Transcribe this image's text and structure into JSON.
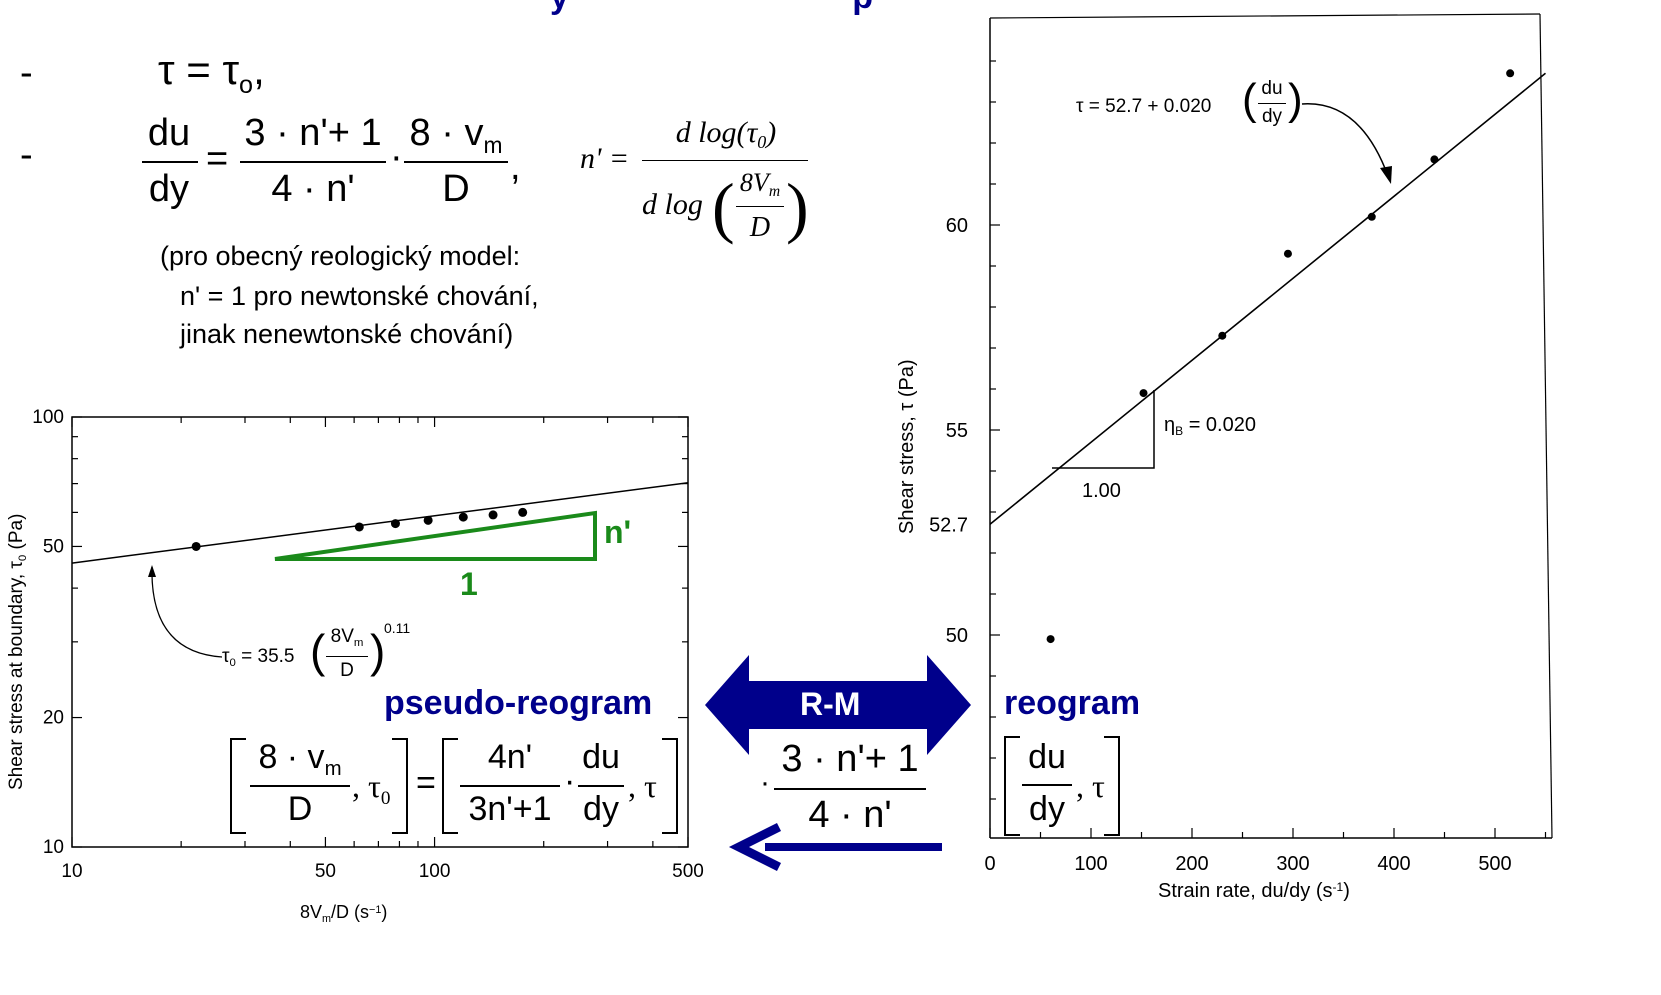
{
  "top_clipped_text": "y                              p",
  "equations": {
    "dash1": "-",
    "tau_eq": "τ = τ",
    "tau_sub": "o",
    "tau_comma": ",",
    "dash2": "-",
    "dudy_num": "du",
    "dudy_den": "dy",
    "eq_sign": "=",
    "frac1_num": "3 · n'+ 1",
    "frac1_den": "4 · n'",
    "dot": "·",
    "frac2_num_a": "8 · v",
    "frac2_num_sub": "m",
    "frac2_den": "D",
    "comma": ",",
    "nprime_lhs": "n' =",
    "nprime_num": "d log(τ",
    "nprime_num_sub": "0",
    "nprime_num_close": ")",
    "nprime_den_a": "d log",
    "nprime_den_num": "8V",
    "nprime_den_num_sub": "m",
    "nprime_den_den": "D"
  },
  "notes": [
    "(pro obecný reologický model:",
    "n' = 1 pro newtonské chování,",
    "jinak nenewtonské chování)"
  ],
  "colors": {
    "green": "#1a8a1a",
    "navy": "#00008b",
    "arrow_fill": "#00008b"
  },
  "left_plot": {
    "ylabel": "Shear stress at boundary, τ",
    "ylabel_sub": "0",
    "ylabel_unit": " (Pa)",
    "xlabel": "8V",
    "xlabel_sub": "m",
    "xlabel_rest": "/D (s",
    "xlabel_sup": "−1",
    "xlabel_end": ")",
    "fit_label_a": "τ",
    "fit_label_sub": "0",
    "fit_label_b": " = 35.5",
    "fit_frac_num": "8V",
    "fit_frac_num_sub": "m",
    "fit_frac_den": "D",
    "fit_exp": "0.11",
    "triangle_vertical_label": "n'",
    "triangle_horizontal_label": "1",
    "title": "pseudo-reogram",
    "formula_left_num": "8 · v",
    "formula_left_num_sub": "m",
    "formula_left_den": "D",
    "formula_left_tail": ", τ",
    "formula_left_tail_sub": "0",
    "formula_eq": "=",
    "formula_right_num1": "4n'",
    "formula_right_den1": "3n'+1",
    "formula_right_dot": "·",
    "formula_right_num2": "du",
    "formula_right_den2": "dy",
    "formula_right_tail": ", τ"
  },
  "right_plot": {
    "ylabel": "Shear stress, τ (Pa)",
    "xlabel": "Strain rate, du/dy (s",
    "xlabel_sup": "-1",
    "xlabel_end": ")",
    "fit_label_a": "τ = 52.7 + 0.020",
    "fit_frac_num": "du",
    "fit_frac_den": "dy",
    "slope_label_a": "η",
    "slope_label_sub": "B",
    "slope_label_b": " = 0.020",
    "run_label": "1.00",
    "title": "reogram",
    "formula_num": "du",
    "formula_den": "dy",
    "formula_tail": ", τ"
  },
  "middle": {
    "arrow_label": "R-M",
    "dot": "·",
    "frac_num": "3 · n'+ 1",
    "frac_den": "4 · n'"
  },
  "chart_data": [
    {
      "type": "scatter",
      "xscale": "log",
      "yscale": "log",
      "xlim": [
        10,
        500
      ],
      "ylim": [
        10,
        100
      ],
      "x_ticks": [
        10,
        50,
        100,
        500
      ],
      "y_ticks": [
        10,
        20,
        50,
        100
      ],
      "grid": false,
      "points": [
        {
          "x": 22,
          "y": 50
        },
        {
          "x": 62,
          "y": 55.5
        },
        {
          "x": 78,
          "y": 56.5
        },
        {
          "x": 96,
          "y": 57.5
        },
        {
          "x": 120,
          "y": 58.5
        },
        {
          "x": 145,
          "y": 59.2
        },
        {
          "x": 175,
          "y": 60
        }
      ],
      "fit": {
        "a": 35.5,
        "b": 0.11
      }
    },
    {
      "type": "scatter",
      "xlim": [
        0,
        550
      ],
      "ylim": [
        45,
        65
      ],
      "x_ticks": [
        0,
        100,
        200,
        300,
        400,
        500
      ],
      "y_ticks": [
        50,
        52.7,
        55,
        60
      ],
      "grid": false,
      "points": [
        {
          "x": 60,
          "y": 49.9
        },
        {
          "x": 152,
          "y": 55.9
        },
        {
          "x": 230,
          "y": 57.3
        },
        {
          "x": 295,
          "y": 59.3
        },
        {
          "x": 378,
          "y": 60.2
        },
        {
          "x": 440,
          "y": 61.6
        },
        {
          "x": 515,
          "y": 63.7
        }
      ],
      "fit": {
        "intercept": 52.7,
        "slope": 0.02
      }
    }
  ]
}
